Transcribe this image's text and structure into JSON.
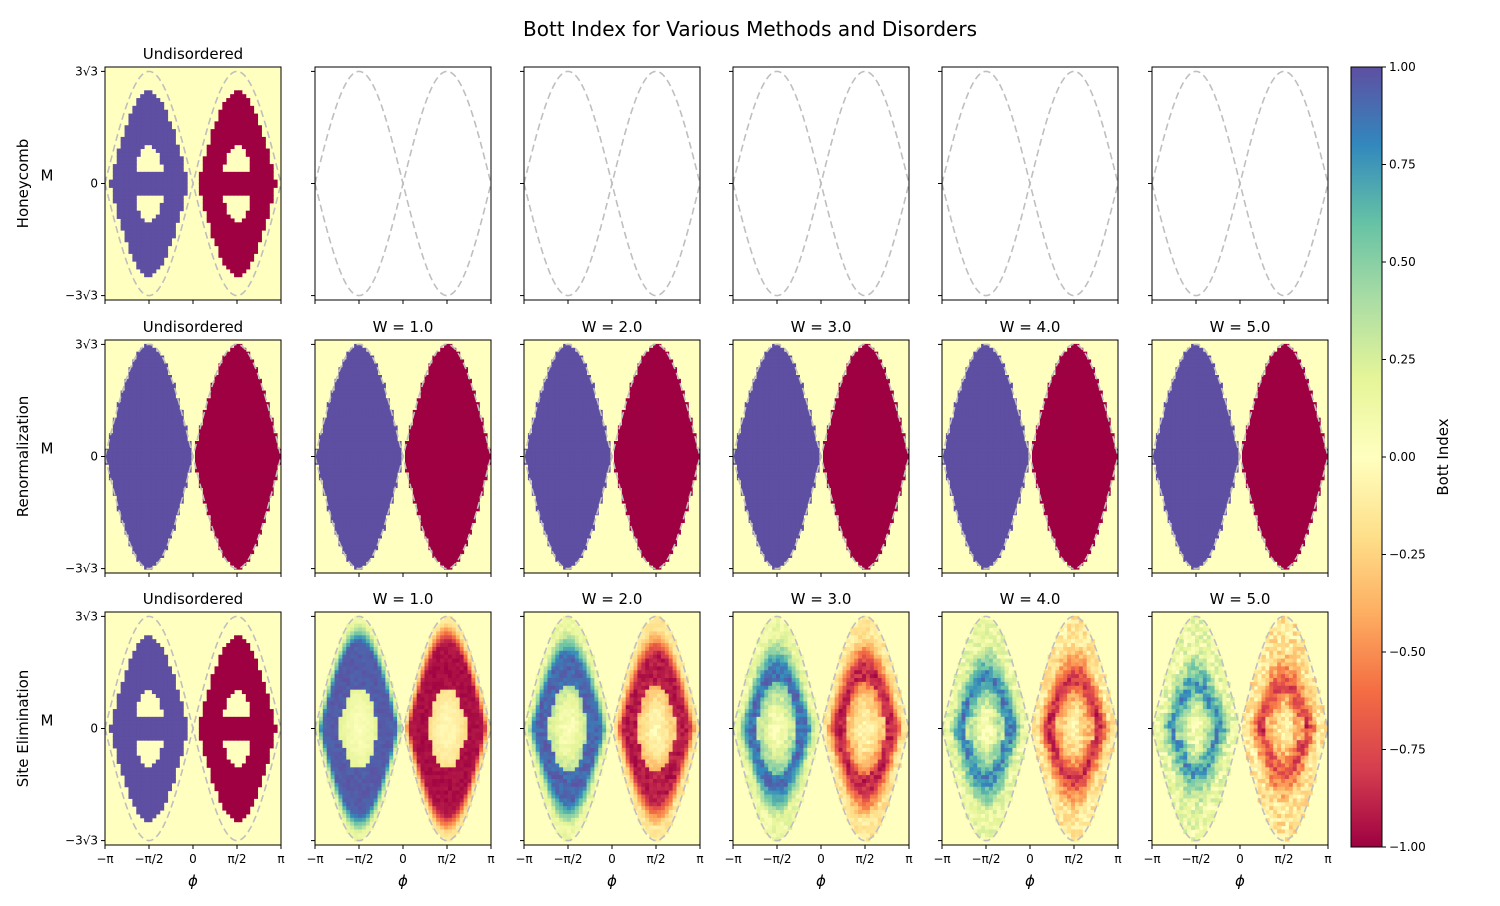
{
  "figure": {
    "title": "Bott Index for Various Methods and Disorders"
  },
  "chart_data": {
    "type": "heatmap",
    "grid": false,
    "rows": [
      {
        "label": "Honeycomb",
        "method": "honeycomb"
      },
      {
        "label": "Renormalization",
        "method": "renormalization"
      },
      {
        "label": "Site Elimination",
        "method": "site_elimination"
      }
    ],
    "columns": [
      {
        "title": "Undisordered",
        "W": 0
      },
      {
        "title": "W = 1.0",
        "W": 1.0
      },
      {
        "title": "W = 2.0",
        "W": 2.0
      },
      {
        "title": "W = 3.0",
        "W": 3.0
      },
      {
        "title": "W = 4.0",
        "W": 4.0
      },
      {
        "title": "W = 5.0",
        "W": 5.0
      }
    ],
    "row_titles": [
      [
        "Undisordered",
        "",
        "",
        "",
        "",
        ""
      ],
      [
        "Undisordered",
        "W = 1.0",
        "W = 2.0",
        "W = 3.0",
        "W = 4.0",
        "W = 5.0"
      ],
      [
        "Undisordered",
        "W = 1.0",
        "W = 2.0",
        "W = 3.0",
        "W = 4.0",
        "W = 5.0"
      ]
    ],
    "panels_with_data": [
      [
        true,
        false,
        false,
        false,
        false,
        false
      ],
      [
        true,
        true,
        true,
        true,
        true,
        true
      ],
      [
        true,
        true,
        true,
        true,
        true,
        true
      ]
    ],
    "xlabel": "ϕ",
    "ylabel": "M",
    "xlim": [
      -3.14159,
      3.14159
    ],
    "ylim": [
      -5.4,
      5.4
    ],
    "xticks": [
      -3.14159,
      -1.5708,
      0,
      1.5708,
      3.14159
    ],
    "xtick_labels": [
      "−π",
      "−π/2",
      "0",
      "π/2",
      "π"
    ],
    "yticks": [
      5.196,
      0,
      -5.196
    ],
    "ytick_labels": [
      "3√3",
      "0",
      "−3√3"
    ],
    "grid_cells": {
      "nx": 45,
      "ny": 60
    },
    "phase_boundary": {
      "formula": "M = ±3√3·sin(ϕ)",
      "style": "dashed",
      "color": "#bfbfbf"
    },
    "regions": {
      "left_lobe_value": 1.0,
      "right_lobe_value": -1.0,
      "outside_value": 0.0
    },
    "colorbar": {
      "label": "Bott Index",
      "colormap": "Spectral",
      "range": [
        -1.0,
        1.0
      ],
      "ticks": [
        1.0,
        0.75,
        0.5,
        0.25,
        0.0,
        -0.25,
        -0.5,
        -0.75,
        -1.0
      ],
      "tick_labels": [
        "1.00",
        "0.75",
        "0.50",
        "0.25",
        "0.00",
        "−0.25",
        "−0.50",
        "−0.75",
        "−1.00"
      ]
    }
  }
}
